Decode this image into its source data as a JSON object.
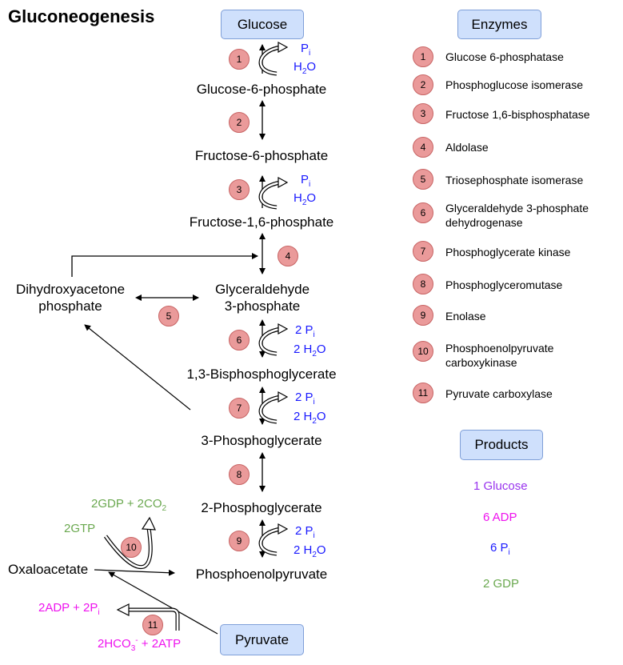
{
  "title": "Gluconeogenesis",
  "boxes": {
    "glucose": "Glucose",
    "enzymes": "Enzymes",
    "products": "Products",
    "pyruvate": "Pyruvate"
  },
  "metabolites": {
    "g6p": "Glucose-6-phosphate",
    "f6p": "Fructose-6-phosphate",
    "f16p": "Fructose-1,6-phosphate",
    "dhap_line1": "Dihydroxyacetone",
    "dhap_line2": "phosphate",
    "gap_line1": "Glyceraldehyde",
    "gap_line2": "3-phosphate",
    "bpg": "1,3-Bisphosphoglycerate",
    "pg3": "3-Phosphoglycerate",
    "pg2": "2-Phosphoglycerate",
    "pep": "Phosphoenolpyruvate",
    "oaa": "Oxaloacetate"
  },
  "step_numbers": [
    "1",
    "2",
    "3",
    "4",
    "5",
    "6",
    "7",
    "8",
    "9",
    "10",
    "11"
  ],
  "side_products": {
    "pi": "P",
    "pi_sub": "i",
    "h2o_h": "H",
    "h2o_sub": "2",
    "h2o_o": "O",
    "two_pi": "2 P",
    "two_h2o_h": "2 H",
    "gdp_co2": "2GDP + 2CO",
    "co2_sub": "2",
    "gtp": "2GTP",
    "adp_pi": "2ADP + 2P",
    "hco3": "2HCO",
    "hco3_sub": "3",
    "hco3_sup": "-",
    "atp": " + 2ATP"
  },
  "enzymes": [
    {
      "num": "1",
      "name": "Glucose 6-phosphatase"
    },
    {
      "num": "2",
      "name": "Phosphoglucose isomerase"
    },
    {
      "num": "3",
      "name": "Fructose 1,6-bisphosphatase"
    },
    {
      "num": "4",
      "name": "Aldolase"
    },
    {
      "num": "5",
      "name": "Triosephosphate isomerase"
    },
    {
      "num": "6",
      "name": "Glyceraldehyde 3-phosphate dehydrogenase"
    },
    {
      "num": "7",
      "name": "Phosphoglycerate kinase"
    },
    {
      "num": "8",
      "name": "Phosphoglyceromutase"
    },
    {
      "num": "9",
      "name": "Enolase"
    },
    {
      "num": "10",
      "name": "Phosphoenolpyruvate carboxykinase"
    },
    {
      "num": "11",
      "name": "Pyruvate carboxylase"
    }
  ],
  "products": {
    "glucose": "1 Glucose",
    "adp": "6 ADP",
    "pi": "6 P",
    "pi_sub": "i",
    "gdp": "2 GDP"
  },
  "colors": {
    "box_fill": "#cfe0fc",
    "box_border": "#7f9fd8",
    "circle_fill": "#ea9a9a",
    "blue": "#1a1aff",
    "green": "#6aa84f",
    "magenta": "#ee11ee",
    "purple": "#9933ee"
  }
}
